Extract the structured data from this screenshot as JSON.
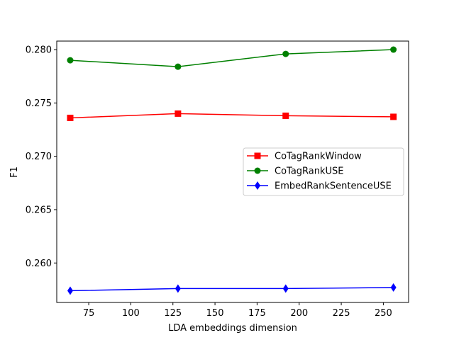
{
  "chart_data": {
    "type": "line",
    "title": "",
    "xlabel": "LDA embeddings dimension",
    "ylabel": "F1",
    "x": [
      64,
      128,
      192,
      256
    ],
    "xlim": [
      56,
      265
    ],
    "ylim": [
      0.2563,
      0.2808
    ],
    "xticks": [
      75,
      100,
      125,
      150,
      175,
      200,
      225,
      250
    ],
    "yticks": [
      0.26,
      0.265,
      0.27,
      0.275,
      0.28
    ],
    "ytick_labels": [
      "0.260",
      "0.265",
      "0.270",
      "0.275",
      "0.280"
    ],
    "grid": false,
    "legend_position": "center-right",
    "series": [
      {
        "name": "CoTagRankWindow",
        "color": "#ff0000",
        "marker": "square",
        "values": [
          0.2736,
          0.274,
          0.2738,
          0.2737
        ]
      },
      {
        "name": "CoTagRankUSE",
        "color": "#008000",
        "marker": "circle",
        "values": [
          0.279,
          0.2784,
          0.2796,
          0.28
        ]
      },
      {
        "name": "EmbedRankSentenceUSE",
        "color": "#0000ff",
        "marker": "diamond",
        "values": [
          0.2574,
          0.2576,
          0.2576,
          0.2577
        ]
      }
    ]
  }
}
